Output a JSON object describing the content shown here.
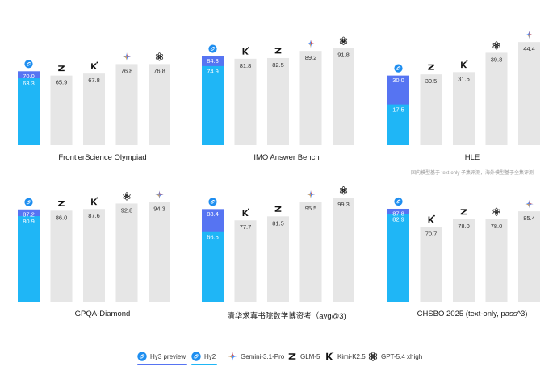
{
  "colors": {
    "hy3": "#5674f2",
    "hy2": "#1fb6f6",
    "other": "#e6e6e6",
    "value_dark": "#333333",
    "value_light": "#ffffff",
    "gemini": [
      "#4f8ff7",
      "#f0a33a",
      "#e5493a"
    ],
    "glm": "#111111",
    "kimi": "#111111",
    "gpt": "#222222"
  },
  "legend": [
    {
      "name": "Hy3 preview",
      "icon": "hy-logo-icon",
      "underline": "#5674f2"
    },
    {
      "name": "Hy2",
      "icon": "hy-logo-icon",
      "underline": "#1fb6f6"
    },
    {
      "name": "Gemini-3.1-Pro",
      "icon": "gemini-icon"
    },
    {
      "name": "GLM-5",
      "icon": "glm-z-icon"
    },
    {
      "name": "Kimi-K2.5",
      "icon": "kimi-k-icon"
    },
    {
      "name": "GPT-5.4 xhigh",
      "icon": "openai-icon"
    }
  ],
  "chart_data": [
    {
      "type": "bar",
      "title": "FrontierScience Olympiad",
      "note": "",
      "ylim": [
        0,
        100
      ],
      "hy3": 70.0,
      "hy2": 63.3,
      "others": [
        {
          "model": "GLM-5",
          "icon": "glm-z-icon",
          "value": 65.9,
          "label": "65.9"
        },
        {
          "model": "Kimi-K2.5",
          "icon": "kimi-k-icon",
          "value": 67.8,
          "label": "67.8"
        },
        {
          "model": "Gemini-3.1-Pro",
          "icon": "gemini-icon",
          "value": 76.8,
          "label": "76.8"
        },
        {
          "model": "GPT-5.4 xhigh",
          "icon": "openai-icon",
          "value": 76.8,
          "label": "76.8"
        }
      ],
      "hy3_label": "70.0",
      "hy2_label": "63.3"
    },
    {
      "type": "bar",
      "title": "IMO Answer Bench",
      "note": "",
      "ylim": [
        0,
        100
      ],
      "hy3": 84.3,
      "hy2": 74.9,
      "others": [
        {
          "model": "Kimi-K2.5",
          "icon": "kimi-k-icon",
          "value": 81.8,
          "label": "81.8"
        },
        {
          "model": "GLM-5",
          "icon": "glm-z-icon",
          "value": 82.5,
          "label": "82.5"
        },
        {
          "model": "Gemini-3.1-Pro",
          "icon": "gemini-icon",
          "value": 89.2,
          "label": "89.2"
        },
        {
          "model": "GPT-5.4 xhigh",
          "icon": "openai-icon",
          "value": 91.8,
          "label": "91.8"
        }
      ],
      "hy3_label": "84.3",
      "hy2_label": "74.9"
    },
    {
      "type": "bar",
      "title": "HLE",
      "note": "国内模型基于 text-only 子集评测，海外模型基于全集评测",
      "ylim": [
        0,
        45.5
      ],
      "hy3": 30.0,
      "hy2": 17.5,
      "others": [
        {
          "model": "GLM-5",
          "icon": "glm-z-icon",
          "value": 30.5,
          "label": "30.5"
        },
        {
          "model": "Kimi-K2.5",
          "icon": "kimi-k-icon",
          "value": 31.5,
          "label": "31.5"
        },
        {
          "model": "GPT-5.4 xhigh",
          "icon": "openai-icon",
          "value": 39.8,
          "label": "39.8"
        },
        {
          "model": "Gemini-3.1-Pro",
          "icon": "gemini-icon",
          "value": 44.4,
          "label": "44.4"
        }
      ],
      "hy3_label": "30.0",
      "hy2_label": "17.5"
    },
    {
      "type": "bar",
      "title": "GPQA-Diamond",
      "note": "",
      "ylim": [
        0,
        100
      ],
      "hy3": 87.2,
      "hy2": 80.9,
      "others": [
        {
          "model": "GLM-5",
          "icon": "glm-z-icon",
          "value": 86.0,
          "label": "86.0"
        },
        {
          "model": "Kimi-K2.5",
          "icon": "kimi-k-icon",
          "value": 87.6,
          "label": "87.6"
        },
        {
          "model": "GPT-5.4 xhigh",
          "icon": "openai-icon",
          "value": 92.8,
          "label": "92.8"
        },
        {
          "model": "Gemini-3.1-Pro",
          "icon": "gemini-icon",
          "value": 94.3,
          "label": "94.3"
        }
      ],
      "hy3_label": "87.2",
      "hy2_label": "80.9"
    },
    {
      "type": "bar",
      "title": "清华求真书院数学博资考（avg@3)",
      "note": "",
      "ylim": [
        0,
        101
      ],
      "hy3": 88.4,
      "hy2": 66.5,
      "others": [
        {
          "model": "Kimi-K2.5",
          "icon": "kimi-k-icon",
          "value": 77.7,
          "label": "77.7"
        },
        {
          "model": "GLM-5",
          "icon": "glm-z-icon",
          "value": 81.5,
          "label": "81.5"
        },
        {
          "model": "Gemini-3.1-Pro",
          "icon": "gemini-icon",
          "value": 95.5,
          "label": "95.5"
        },
        {
          "model": "GPT-5.4 xhigh",
          "icon": "openai-icon",
          "value": 99.3,
          "label": "99.3"
        }
      ],
      "hy3_label": "88.4",
      "hy2_label": "66.5"
    },
    {
      "type": "bar",
      "title": "CHSBO 2025 (text-only, pass^3)",
      "note": "",
      "ylim": [
        0,
        100
      ],
      "hy3": 87.8,
      "hy2": 82.9,
      "others": [
        {
          "model": "Kimi-K2.5",
          "icon": "kimi-k-icon",
          "value": 70.7,
          "label": "70.7"
        },
        {
          "model": "GLM-5",
          "icon": "glm-z-icon",
          "value": 78.0,
          "label": "78.0"
        },
        {
          "model": "GPT-5.4 xhigh",
          "icon": "openai-icon",
          "value": 78.0,
          "label": "78.0"
        },
        {
          "model": "Gemini-3.1-Pro",
          "icon": "gemini-icon",
          "value": 85.4,
          "label": "85.4"
        }
      ],
      "hy3_label": "87.8",
      "hy2_label": "82.9"
    }
  ]
}
